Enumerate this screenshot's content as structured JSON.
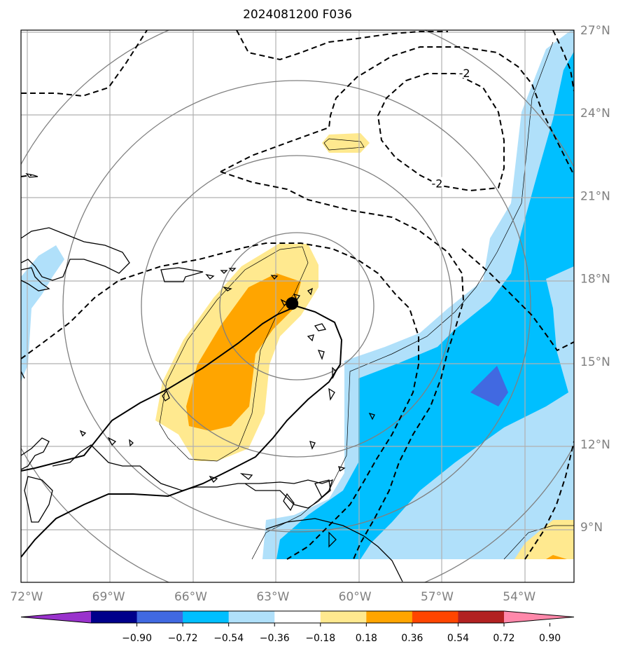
{
  "title": "2024081200 F036",
  "map": {
    "lon_min": -72.2,
    "lon_max": -52.0,
    "lat_min": 7.0,
    "lat_max": 27.0,
    "gridlines": true,
    "lon_ticks": [
      {
        "value": -72,
        "label": "72°W"
      },
      {
        "value": -69,
        "label": "69°W"
      },
      {
        "value": -66,
        "label": "66°W"
      },
      {
        "value": -63,
        "label": "63°W"
      },
      {
        "value": -60,
        "label": "60°W"
      },
      {
        "value": -57,
        "label": "57°W"
      },
      {
        "value": -54,
        "label": "54°W"
      }
    ],
    "lat_ticks": [
      {
        "value": 27,
        "label": "27°N"
      },
      {
        "value": 24,
        "label": "24°N"
      },
      {
        "value": 21,
        "label": "21°N"
      },
      {
        "value": 18,
        "label": "18°N"
      },
      {
        "value": 15,
        "label": "15°N"
      },
      {
        "value": 12,
        "label": "12°N"
      },
      {
        "value": 9,
        "label": "9°N"
      }
    ],
    "storm_center": {
      "lon": -62.3,
      "lat": 17.1
    },
    "contour_labels": [
      {
        "text": "-2",
        "lon": -56.0,
        "lat": 25.4
      },
      {
        "text": "-2",
        "lon": -57.0,
        "lat": 21.4
      }
    ]
  },
  "colorbar": {
    "colors": [
      "#9932cc",
      "#00008b",
      "#4169e1",
      "#00bfff",
      "#b0e0fa",
      "#ffffff",
      "#ffe98f",
      "#ffa500",
      "#ff4500",
      "#b22222",
      "#ff88aa"
    ],
    "tick_labels": [
      "−0.90",
      "−0.72",
      "−0.54",
      "−0.36",
      "−0.18",
      "0.18",
      "0.36",
      "0.54",
      "0.72",
      "0.90"
    ],
    "tick_values": [
      -0.9,
      -0.72,
      -0.54,
      -0.36,
      -0.18,
      0.18,
      0.36,
      0.54,
      0.72,
      0.9
    ]
  }
}
